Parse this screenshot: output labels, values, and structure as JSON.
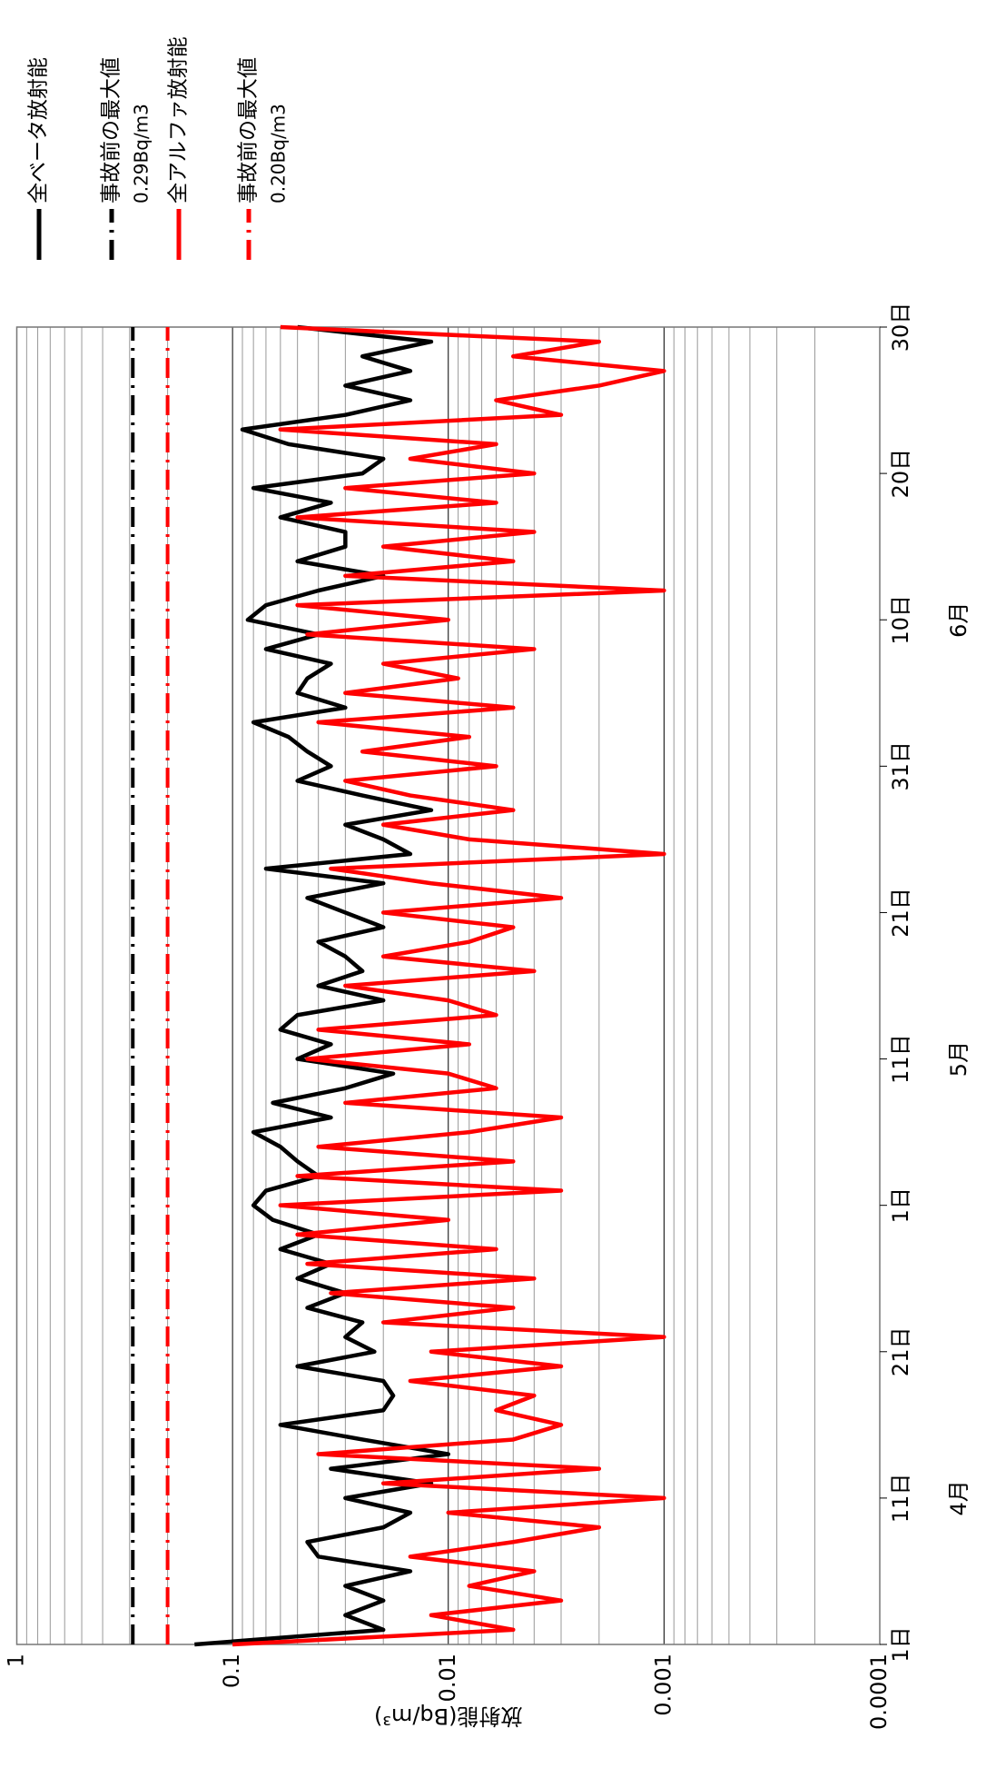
{
  "chart_data": {
    "type": "line",
    "y_label": "放射能(Bq/m³)",
    "log_y": true,
    "grid": true,
    "x": [
      0,
      1,
      2,
      3,
      4,
      5,
      6,
      7,
      8,
      9,
      10,
      11,
      12,
      13,
      14,
      15,
      16,
      17,
      18,
      19,
      20,
      21,
      22,
      23,
      24,
      25,
      26,
      27,
      28,
      29,
      30,
      31,
      32,
      33,
      34,
      35,
      36,
      37,
      38,
      39,
      40,
      41,
      42,
      43,
      44,
      45,
      46,
      47,
      48,
      49,
      50,
      51,
      52,
      53,
      54,
      55,
      56,
      57,
      58,
      59,
      60,
      61,
      62,
      63,
      64,
      65,
      66,
      67,
      68,
      69,
      70,
      71,
      72,
      73,
      74,
      75,
      76,
      77,
      78,
      79,
      80,
      81,
      82,
      83,
      84,
      85,
      86,
      87,
      88,
      89,
      90
    ],
    "xlim": [
      0,
      90
    ],
    "xticks": [
      {
        "value": 0,
        "label": "1日"
      },
      {
        "value": 10,
        "label": "11日"
      },
      {
        "value": 20,
        "label": "21日"
      },
      {
        "value": 30,
        "label": "1日"
      },
      {
        "value": 40,
        "label": "11日"
      },
      {
        "value": 50,
        "label": "21日"
      },
      {
        "value": 60,
        "label": "31日"
      },
      {
        "value": 70,
        "label": "10日"
      },
      {
        "value": 80,
        "label": "20日"
      },
      {
        "value": 90,
        "label": "30日"
      }
    ],
    "month_labels": [
      {
        "value": 10,
        "label": "4月"
      },
      {
        "value": 40,
        "label": "5月"
      },
      {
        "value": 70,
        "label": "6月"
      }
    ],
    "ylim": [
      0.0001,
      1
    ],
    "yticks": [
      0.0001,
      0.001,
      0.01,
      0.1,
      1
    ],
    "series": [
      {
        "name": "全ベータ放射能",
        "color": "#000000",
        "values": [
          0.15,
          0.02,
          0.03,
          0.02,
          0.03,
          0.015,
          0.04,
          0.045,
          0.02,
          0.015,
          0.03,
          0.012,
          0.035,
          0.01,
          0.025,
          0.06,
          0.02,
          0.018,
          0.02,
          0.05,
          0.022,
          0.03,
          0.025,
          0.045,
          0.03,
          0.05,
          0.035,
          0.06,
          0.04,
          0.065,
          0.08,
          0.07,
          0.04,
          0.05,
          0.06,
          0.08,
          0.035,
          0.065,
          0.03,
          0.018,
          0.05,
          0.035,
          0.06,
          0.05,
          0.02,
          0.04,
          0.025,
          0.03,
          0.04,
          0.02,
          0.03,
          0.045,
          0.02,
          0.07,
          0.015,
          0.02,
          0.03,
          0.012,
          0.025,
          0.05,
          0.035,
          0.045,
          0.055,
          0.08,
          0.03,
          0.05,
          0.045,
          0.035,
          0.07,
          0.04,
          0.085,
          0.07,
          0.04,
          0.02,
          0.05,
          0.03,
          0.03,
          0.06,
          0.035,
          0.08,
          0.025,
          0.02,
          0.055,
          0.09,
          0.03,
          0.015,
          0.03,
          0.015,
          0.025,
          0.012,
          0.05
        ]
      },
      {
        "name": "全アルファ放射能",
        "color": "#ff0000",
        "values": [
          0.1,
          0.005,
          0.012,
          0.003,
          0.008,
          0.004,
          0.015,
          0.005,
          0.002,
          0.01,
          0.001,
          0.02,
          0.002,
          0.04,
          0.005,
          0.003,
          0.006,
          0.004,
          0.015,
          0.003,
          0.012,
          0.001,
          0.02,
          0.005,
          0.035,
          0.004,
          0.045,
          0.006,
          0.05,
          0.01,
          0.06,
          0.003,
          0.05,
          0.005,
          0.04,
          0.008,
          0.003,
          0.03,
          0.006,
          0.01,
          0.045,
          0.008,
          0.04,
          0.006,
          0.01,
          0.03,
          0.004,
          0.02,
          0.008,
          0.005,
          0.02,
          0.003,
          0.012,
          0.035,
          0.001,
          0.008,
          0.02,
          0.005,
          0.015,
          0.03,
          0.006,
          0.025,
          0.008,
          0.04,
          0.005,
          0.03,
          0.009,
          0.02,
          0.004,
          0.045,
          0.01,
          0.05,
          0.001,
          0.03,
          0.005,
          0.02,
          0.004,
          0.05,
          0.006,
          0.03,
          0.004,
          0.015,
          0.006,
          0.06,
          0.003,
          0.006,
          0.002,
          0.001,
          0.005,
          0.002,
          0.06
        ]
      }
    ],
    "reference_lines": [
      {
        "name": "事故前の最大値",
        "label": "0.29Bq/m3",
        "value": 0.29,
        "color": "#000000"
      },
      {
        "name": "事故前の最大値",
        "label": "0.20Bq/m3",
        "value": 0.2,
        "color": "#ff0000"
      }
    ]
  }
}
